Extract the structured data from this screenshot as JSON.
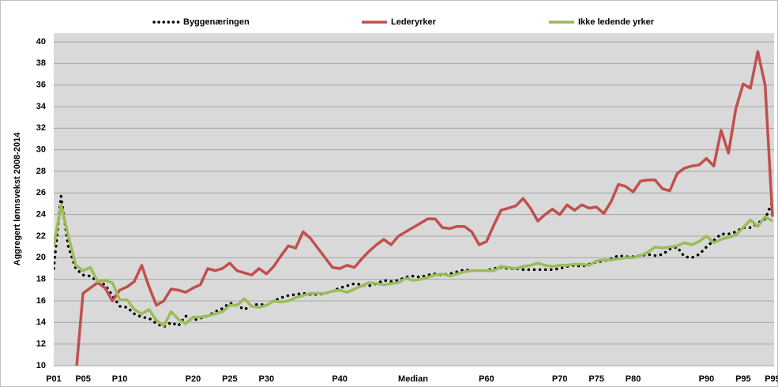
{
  "chart_data": {
    "type": "line",
    "y_label": "Aggregert lønnsvekst 2008-2014",
    "categories": [
      "P01",
      null,
      null,
      null,
      "P05",
      null,
      null,
      null,
      null,
      "P10",
      null,
      null,
      null,
      null,
      null,
      null,
      null,
      null,
      null,
      "P20",
      null,
      null,
      null,
      null,
      "P25",
      null,
      null,
      null,
      null,
      "P30",
      null,
      null,
      null,
      null,
      null,
      null,
      null,
      null,
      null,
      "P40",
      null,
      null,
      null,
      null,
      null,
      null,
      null,
      null,
      null,
      "Median",
      null,
      null,
      null,
      null,
      null,
      null,
      null,
      null,
      null,
      "P60",
      null,
      null,
      null,
      null,
      null,
      null,
      null,
      null,
      null,
      "P70",
      null,
      null,
      null,
      null,
      "P75",
      null,
      null,
      null,
      null,
      "P80",
      null,
      null,
      null,
      null,
      null,
      null,
      null,
      null,
      null,
      "P90",
      null,
      null,
      null,
      null,
      "P95",
      null,
      null,
      null,
      "P99"
    ],
    "series": [
      {
        "name": "Byggenæringen",
        "color": "#000000",
        "dotted": true,
        "values": [
          19.0,
          25.7,
          21.0,
          19.0,
          18.4,
          18.3,
          17.8,
          17.5,
          16.5,
          15.5,
          15.4,
          14.8,
          14.5,
          14.4,
          13.9,
          13.6,
          14.0,
          13.7,
          14.6,
          14.2,
          14.4,
          14.6,
          15.0,
          15.3,
          15.8,
          15.6,
          15.2,
          15.6,
          15.7,
          15.6,
          16.0,
          16.3,
          16.5,
          16.6,
          16.7,
          16.6,
          16.6,
          16.7,
          16.9,
          17.2,
          17.4,
          17.6,
          17.5,
          17.4,
          17.6,
          17.9,
          17.8,
          17.9,
          18.2,
          18.3,
          18.2,
          18.4,
          18.5,
          18.4,
          18.5,
          18.7,
          18.9,
          18.8,
          18.8,
          18.8,
          19.0,
          19.1,
          19.0,
          19.0,
          18.9,
          18.9,
          18.9,
          18.9,
          18.9,
          19.0,
          19.2,
          19.3,
          19.2,
          19.4,
          19.6,
          19.7,
          19.9,
          20.2,
          20.1,
          20.1,
          20.2,
          20.3,
          20.2,
          20.3,
          20.8,
          21.0,
          20.1,
          20.0,
          20.3,
          21.0,
          21.6,
          22.2,
          22.2,
          22.4,
          22.8,
          22.8,
          23.2,
          23.6,
          25.2
        ]
      },
      {
        "name": "Lederyrker",
        "color": "#c0504d",
        "values": [
          null,
          null,
          null,
          9.0,
          16.7,
          17.2,
          17.7,
          17.2,
          16.0,
          17.0,
          17.3,
          17.8,
          19.3,
          17.3,
          15.6,
          16.0,
          17.1,
          17.0,
          16.8,
          17.2,
          17.5,
          19.0,
          18.8,
          19.0,
          19.5,
          18.8,
          18.6,
          18.4,
          19.0,
          18.5,
          19.2,
          20.2,
          21.1,
          20.9,
          22.4,
          21.8,
          20.9,
          20.0,
          19.1,
          19.0,
          19.3,
          19.1,
          19.9,
          20.6,
          21.2,
          21.7,
          21.2,
          22.0,
          22.4,
          22.8,
          23.2,
          23.6,
          23.6,
          22.8,
          22.7,
          22.9,
          22.9,
          22.4,
          21.2,
          21.5,
          23.0,
          24.4,
          24.6,
          24.8,
          25.5,
          24.6,
          23.4,
          24.0,
          24.5,
          24.0,
          24.9,
          24.4,
          24.9,
          24.6,
          24.7,
          24.1,
          25.2,
          26.8,
          26.6,
          26.1,
          27.1,
          27.2,
          27.2,
          26.4,
          26.2,
          27.8,
          28.3,
          28.5,
          28.6,
          29.2,
          28.5,
          31.8,
          29.7,
          33.8,
          36.1,
          35.7,
          39.1,
          36.0,
          23.8
        ]
      },
      {
        "name": "Ikke ledende yrker",
        "color": "#9bbb59",
        "values": [
          21.0,
          24.9,
          22.0,
          19.3,
          18.8,
          19.1,
          17.8,
          17.9,
          17.7,
          16.1,
          16.1,
          15.2,
          14.8,
          15.2,
          14.2,
          13.7,
          15.0,
          14.3,
          13.9,
          14.5,
          14.5,
          14.6,
          14.8,
          15.0,
          15.6,
          15.6,
          16.2,
          15.5,
          15.4,
          15.6,
          16.0,
          15.9,
          16.0,
          16.3,
          16.5,
          16.7,
          16.7,
          16.7,
          16.9,
          17.0,
          16.8,
          17.1,
          17.4,
          17.7,
          17.6,
          17.5,
          17.6,
          17.7,
          18.1,
          17.9,
          18.0,
          18.2,
          18.4,
          18.5,
          18.3,
          18.5,
          18.7,
          18.8,
          18.8,
          18.8,
          18.8,
          19.2,
          19.1,
          19.0,
          19.2,
          19.3,
          19.5,
          19.3,
          19.2,
          19.3,
          19.3,
          19.4,
          19.4,
          19.3,
          19.7,
          19.8,
          19.8,
          19.9,
          20.0,
          20.0,
          20.2,
          20.5,
          21.0,
          20.9,
          21.0,
          21.1,
          21.4,
          21.2,
          21.5,
          22.0,
          21.4,
          21.7,
          21.9,
          22.1,
          22.8,
          23.5,
          22.9,
          23.8,
          23.4
        ]
      }
    ],
    "ylim": [
      10,
      40
    ],
    "yticks": [
      10,
      12,
      14,
      16,
      18,
      20,
      22,
      24,
      26,
      28,
      30,
      32,
      34,
      36,
      38,
      40
    ],
    "grid": true,
    "legend": "top"
  }
}
